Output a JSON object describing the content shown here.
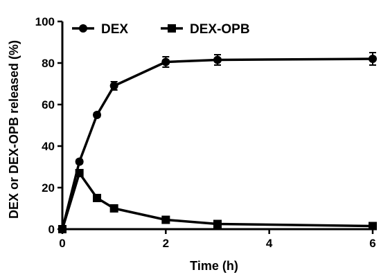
{
  "chart_data": {
    "type": "line",
    "title": "",
    "xlabel": "Time (h)",
    "ylabel": "DEX or DEX-OPB released (%)",
    "xlim": [
      0,
      6
    ],
    "ylim": [
      0,
      100
    ],
    "xticks": [
      0,
      2,
      4,
      6
    ],
    "yticks": [
      0,
      20,
      40,
      60,
      80,
      100
    ],
    "legend_position": "top-left",
    "grid": false,
    "series": [
      {
        "name": "DEX",
        "marker": "circle",
        "color": "#000000",
        "x": [
          0,
          0.33,
          0.67,
          1,
          2,
          3,
          6
        ],
        "y": [
          0,
          32.5,
          55,
          69,
          80.5,
          81.5,
          82
        ],
        "err": [
          0,
          1,
          1,
          2,
          2.5,
          2.5,
          3
        ]
      },
      {
        "name": "DEX-OPB",
        "marker": "square",
        "color": "#000000",
        "x": [
          0,
          0.33,
          0.67,
          1,
          2,
          3,
          6
        ],
        "y": [
          0,
          27,
          15,
          10,
          4.5,
          2.5,
          1.5
        ],
        "err": [
          0,
          1,
          0.5,
          0.5,
          0.5,
          0.5,
          0.5
        ]
      }
    ]
  }
}
